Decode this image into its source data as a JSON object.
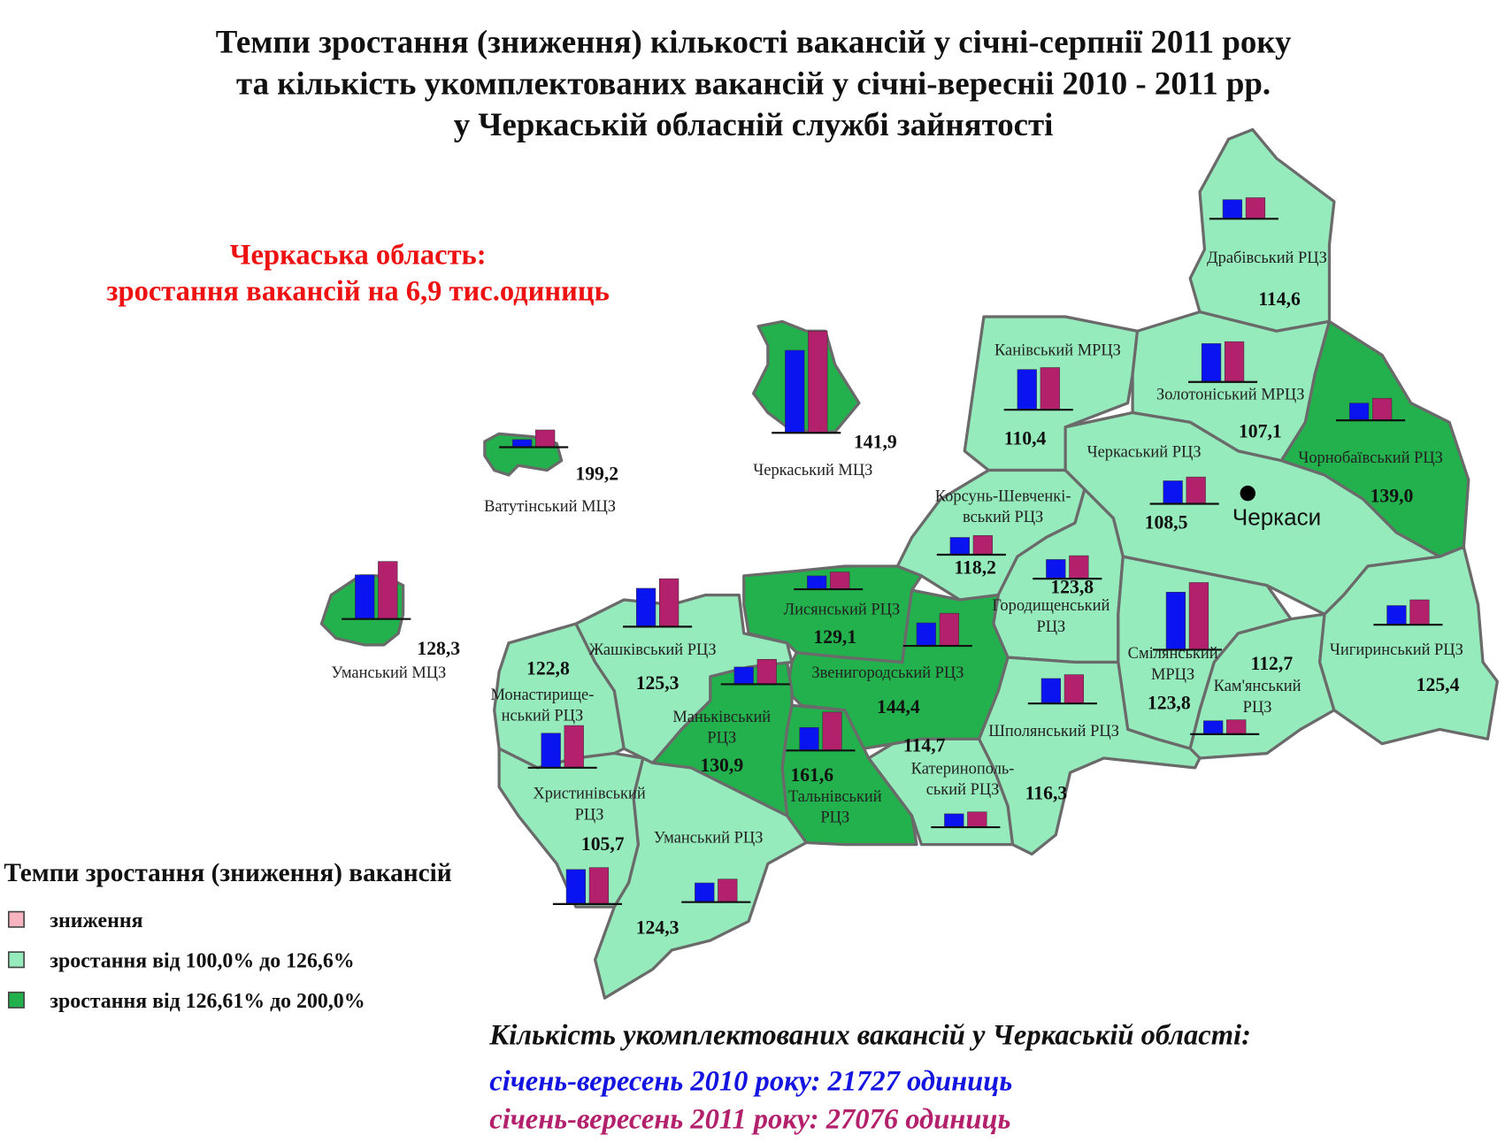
{
  "title": [
    "Темпи зростання (зниження) кількості вакансій у січні-серпнії 2011 року",
    "та кількість укомплектованих вакансій у січні-вересніі 2010 - 2011 рр.",
    "у Черкаській обласній службі зайнятості"
  ],
  "highlight": [
    "Черкаська область:",
    "зростання вакансій на 6,9 тис.одиниць"
  ],
  "highlight_color": "#ee1111",
  "bar_colors": [
    "#0a14f0",
    "#b3206b"
  ],
  "legend": {
    "title": "Темпи зростання (зниження) вакансій",
    "items": [
      {
        "label": "зниження",
        "color": "#f8b4c0"
      },
      {
        "label": "зростання від 100,0% до 126,6%",
        "color": "#96ebbd"
      },
      {
        "label": "зростання від 126,61% до 200,0%",
        "color": "#22b14c"
      }
    ]
  },
  "districts": [
    {
      "name": [
        "Драбівський РЦЗ"
      ],
      "value": 114.6,
      "value_label": "114,6",
      "class": 1,
      "bar_values": [
        20,
        22
      ]
    },
    {
      "name": [
        "Канівський МРЦЗ"
      ],
      "value": 110.4,
      "value_label": "110,4",
      "class": 1,
      "bar_values": [
        42,
        44
      ]
    },
    {
      "name": [
        "Золотоніський МРЦЗ"
      ],
      "value": 107.1,
      "value_label": "107,1",
      "class": 1,
      "bar_values": [
        40,
        42
      ]
    },
    {
      "name": [
        "Чорнобаївський РЦЗ"
      ],
      "value": 139.0,
      "value_label": "139,0",
      "class": 2,
      "bar_values": [
        18,
        23
      ]
    },
    {
      "name": [
        "Черкаський РЦЗ"
      ],
      "value": 108.5,
      "value_label": "108,5",
      "class": 1,
      "bar_values": [
        24,
        28
      ]
    },
    {
      "name": [
        "Корсунь-Шевченкі-",
        "вський РЦЗ"
      ],
      "value": 118.2,
      "value_label": "118,2",
      "class": 1,
      "bar_values": [
        18,
        20
      ]
    },
    {
      "name": [
        "Городищенський",
        "РЦЗ"
      ],
      "value": 123.8,
      "value_label": "123,8",
      "class": 1,
      "bar_values": [
        20,
        24
      ]
    },
    {
      "name": [
        "Смілянський",
        "МРЦЗ"
      ],
      "value": 123.8,
      "value_label": "123,8",
      "class": 1,
      "bar_values": [
        60,
        70
      ]
    },
    {
      "name": [
        "Кам'янський",
        "РЦЗ"
      ],
      "value": 112.7,
      "value_label": "112,7",
      "class": 1,
      "bar_values": [
        14,
        15
      ]
    },
    {
      "name": [
        "Чигиринський РЦЗ"
      ],
      "value": 125.4,
      "value_label": "125,4",
      "class": 1,
      "bar_values": [
        20,
        26
      ]
    },
    {
      "name": [
        "Шполянський РЦЗ"
      ],
      "value": 116.3,
      "value_label": "116,3",
      "class": 1,
      "bar_values": [
        26,
        30
      ]
    },
    {
      "name": [
        "Катеринополь-",
        "ський РЦЗ"
      ],
      "value": 114.7,
      "value_label": "114,7",
      "class": 1,
      "bar_values": [
        14,
        16
      ]
    },
    {
      "name": [
        "Звенигородський РЦЗ"
      ],
      "value": 144.4,
      "value_label": "144,4",
      "class": 2,
      "bar_values": [
        24,
        34
      ]
    },
    {
      "name": [
        "Лисянський РЦЗ"
      ],
      "value": 129.1,
      "value_label": "129,1",
      "class": 2,
      "bar_values": [
        14,
        18
      ]
    },
    {
      "name": [
        "Тальнівський",
        "РЦЗ"
      ],
      "value": 161.6,
      "value_label": "161,6",
      "class": 2,
      "bar_values": [
        24,
        40
      ]
    },
    {
      "name": [
        "Маньківський",
        "РЦЗ"
      ],
      "value": 130.9,
      "value_label": "130,9",
      "class": 2,
      "bar_values": [
        18,
        26
      ]
    },
    {
      "name": [
        "Жашківський РЦЗ"
      ],
      "value": 125.3,
      "value_label": "125,3",
      "class": 1,
      "bar_values": [
        40,
        50
      ]
    },
    {
      "name": [
        "Монастирище-",
        "нський РЦЗ"
      ],
      "value": 122.8,
      "value_label": "122,8",
      "class": 1,
      "bar_values": [
        36,
        44
      ]
    },
    {
      "name": [
        "Христинівський",
        "РЦЗ"
      ],
      "value": 105.7,
      "value_label": "105,7",
      "class": 1,
      "bar_values": [
        36,
        38
      ]
    },
    {
      "name": [
        "Уманський РЦЗ"
      ],
      "value": 124.3,
      "value_label": "124,3",
      "class": 1,
      "bar_values": [
        20,
        24
      ]
    },
    {
      "name": [
        "Черкаський МЦЗ"
      ],
      "value": 141.9,
      "value_label": "141,9",
      "class": 2,
      "bar_values": [
        86,
        106
      ]
    },
    {
      "name": [
        "Ватутінський МЦЗ"
      ],
      "value": 199.2,
      "value_label": "199,2",
      "class": 2,
      "bar_values": [
        8,
        18
      ]
    },
    {
      "name": [
        "Уманський МЦЗ"
      ],
      "value": 128.3,
      "value_label": "128,3",
      "class": 2,
      "bar_values": [
        46,
        60
      ]
    }
  ],
  "city": "Черкаси",
  "summary": {
    "title": "Кількість укомплектованих вакансій у Черкаській області:",
    "lines": [
      {
        "text": "січень-вересень 2010 року: 21727 одиниць",
        "color": "#1414e0"
      },
      {
        "text": "січень-вересень 2011 року: 27076 одиниць",
        "color": "#b3206b"
      }
    ]
  }
}
